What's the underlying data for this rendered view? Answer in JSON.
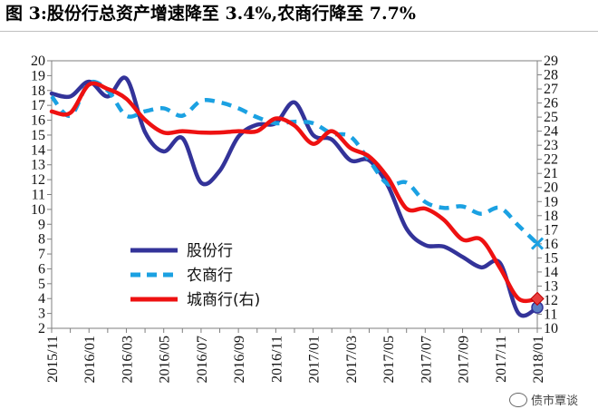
{
  "figure": {
    "title": "图 3:股份行总资产增速降至 3.4%,农商行降至 7.7%",
    "watermark": "债市覃谈"
  },
  "chart_data": {
    "type": "line",
    "x": [
      "2015/11",
      "2015/12",
      "2016/01",
      "2016/02",
      "2016/03",
      "2016/04",
      "2016/05",
      "2016/06",
      "2016/07",
      "2016/08",
      "2016/09",
      "2016/10",
      "2016/11",
      "2016/12",
      "2017/01",
      "2017/02",
      "2017/03",
      "2017/04",
      "2017/05",
      "2017/06",
      "2017/07",
      "2017/08",
      "2017/09",
      "2017/10",
      "2017/11",
      "2017/12",
      "2018/01"
    ],
    "xtick_labels": [
      "2015/11",
      "2016/01",
      "2016/03",
      "2016/05",
      "2016/07",
      "2016/09",
      "2016/11",
      "2017/01",
      "2017/03",
      "2017/05",
      "2017/07",
      "2017/09",
      "2017/11",
      "2018/01"
    ],
    "ylim_left": [
      2,
      20
    ],
    "ylim_right": [
      10,
      29
    ],
    "series": [
      {
        "name": "股份行",
        "axis": "left",
        "color": "#333399",
        "dash": "solid",
        "end_marker": "circle",
        "values": [
          17.8,
          17.6,
          18.6,
          17.6,
          18.8,
          15.2,
          13.9,
          14.8,
          11.8,
          12.6,
          14.9,
          15.7,
          15.8,
          17.2,
          15.0,
          14.7,
          13.3,
          13.3,
          11.6,
          8.7,
          7.6,
          7.5,
          6.8,
          6.1,
          6.4,
          3.0,
          3.4
        ]
      },
      {
        "name": "农商行",
        "axis": "left",
        "color": "#1ba1e2",
        "dash": "dashed",
        "end_marker": "x",
        "values": [
          17.6,
          16.3,
          18.5,
          18.0,
          16.3,
          16.6,
          16.8,
          16.3,
          17.3,
          17.2,
          16.8,
          16.2,
          15.8,
          15.9,
          15.8,
          15.1,
          14.9,
          13.3,
          11.7,
          11.8,
          10.5,
          10.1,
          10.2,
          9.7,
          10.1,
          8.9,
          7.7
        ]
      },
      {
        "name": "城商行(右)",
        "axis": "right",
        "color": "#ee1111",
        "dash": "solid",
        "end_marker": "diamond",
        "values": [
          25.4,
          25.3,
          27.3,
          27.0,
          26.3,
          24.8,
          23.9,
          24.0,
          23.9,
          23.9,
          24.0,
          24.0,
          24.9,
          24.4,
          23.1,
          24.0,
          22.8,
          22.2,
          20.7,
          18.5,
          18.5,
          17.7,
          16.3,
          16.3,
          14.3,
          12.1,
          12.1
        ]
      }
    ]
  }
}
